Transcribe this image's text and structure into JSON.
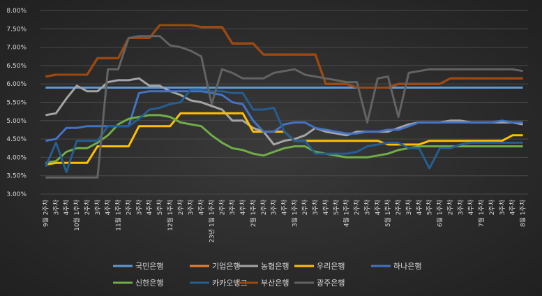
{
  "chart_data": {
    "type": "line",
    "ylim": [
      3.0,
      8.0
    ],
    "y_ticks": [
      "3.00%",
      "3.50%",
      "4.00%",
      "4.50%",
      "5.00%",
      "5.50%",
      "6.00%",
      "6.50%",
      "7.00%",
      "7.50%",
      "8.00%"
    ],
    "x_labels": [
      "9월 2주차",
      "3주차",
      "4주차",
      "10월 1주차",
      "2주차",
      "3주차",
      "4주차",
      "11월 1주차",
      "2주차",
      "3주차",
      "4주차",
      "5주차",
      "12월 1주차",
      "2주차",
      "3주차",
      "4주차",
      "23년 1월 1주차",
      "2주차",
      "3주차",
      "4주차",
      "2월 1주차",
      "2주차",
      "3주차",
      "4주차",
      "3월 1주차",
      "2주차",
      "3주차",
      "4주차",
      "5주차",
      "4월 1주차",
      "2주차",
      "3주차",
      "4주차",
      "5월 1주차",
      "2주차",
      "3주차",
      "4주차",
      "5주차",
      "6월 1주차",
      "2주차",
      "3주차",
      "4주차",
      "7월 1주차",
      "2주차",
      "3주차",
      "4주차",
      "8월 1주차"
    ],
    "legend_position": "bottom",
    "series": [
      {
        "name": "국민은행",
        "color": "#5b9bd5",
        "values": [
          5.9,
          5.9,
          5.9,
          5.9,
          5.9,
          5.9,
          5.9,
          5.9,
          5.9,
          5.9,
          5.9,
          5.9,
          5.9,
          5.9,
          5.9,
          5.9,
          5.9,
          5.9,
          5.9,
          5.9,
          5.9,
          5.9,
          5.9,
          5.9,
          5.9,
          5.9,
          5.9,
          5.9,
          5.9,
          5.9,
          5.9,
          5.9,
          5.9,
          5.9,
          5.9,
          5.9,
          5.9,
          5.9,
          5.9,
          5.9,
          5.9,
          5.9,
          5.9,
          5.9,
          5.9,
          5.9,
          5.9
        ]
      },
      {
        "name": "기업은행",
        "color": "#ed7d31",
        "values": [
          6.2,
          6.25,
          6.25,
          6.25,
          6.25,
          6.7,
          6.7,
          6.7,
          7.25,
          7.25,
          7.25,
          7.6,
          7.6,
          7.6,
          7.6,
          7.55,
          7.55,
          7.55,
          7.1,
          7.1,
          7.1,
          6.8,
          6.8,
          6.8,
          6.8,
          6.8,
          6.8,
          6.0,
          6.0,
          6.0,
          5.9,
          5.9,
          5.9,
          5.9,
          6.0,
          6.0,
          6.0,
          6.0,
          6.0,
          6.15,
          6.15,
          6.15,
          6.15,
          6.15,
          6.15,
          6.15,
          6.15
        ]
      },
      {
        "name": "농협은행",
        "color": "#a5a5a5",
        "values": [
          5.15,
          5.2,
          5.6,
          5.95,
          5.8,
          5.8,
          6.05,
          6.1,
          6.1,
          6.15,
          5.95,
          5.95,
          5.8,
          5.7,
          5.55,
          5.5,
          5.4,
          5.3,
          5.0,
          5.0,
          4.8,
          4.7,
          4.35,
          4.45,
          4.5,
          4.6,
          4.8,
          4.7,
          4.65,
          4.6,
          4.7,
          4.7,
          4.7,
          4.7,
          4.8,
          4.9,
          4.95,
          4.95,
          4.95,
          5.0,
          5.0,
          4.95,
          4.95,
          4.95,
          4.95,
          4.95,
          4.9
        ]
      },
      {
        "name": "우리은행",
        "color": "#ffc000",
        "values": [
          3.8,
          3.85,
          3.85,
          3.85,
          3.85,
          4.3,
          4.3,
          4.3,
          4.3,
          4.85,
          4.85,
          4.85,
          4.85,
          5.2,
          5.2,
          5.2,
          5.2,
          5.2,
          5.2,
          5.2,
          4.7,
          4.7,
          4.7,
          4.7,
          4.45,
          4.45,
          4.45,
          4.45,
          4.45,
          4.45,
          4.45,
          4.45,
          4.45,
          4.35,
          4.35,
          4.35,
          4.35,
          4.45,
          4.45,
          4.45,
          4.45,
          4.45,
          4.45,
          4.45,
          4.45,
          4.6,
          4.6
        ]
      },
      {
        "name": "하나은행",
        "color": "#4472c4",
        "values": [
          4.45,
          4.5,
          4.8,
          4.8,
          4.85,
          4.85,
          4.85,
          4.85,
          4.85,
          5.75,
          5.8,
          5.8,
          5.8,
          5.8,
          5.8,
          5.8,
          5.75,
          5.7,
          5.5,
          5.45,
          5.0,
          4.7,
          4.7,
          4.9,
          4.95,
          4.95,
          4.8,
          4.75,
          4.7,
          4.65,
          4.65,
          4.7,
          4.7,
          4.75,
          4.75,
          4.85,
          4.95,
          4.95,
          4.95,
          4.95,
          4.95,
          4.95,
          4.95,
          4.95,
          5.0,
          4.95,
          4.95
        ]
      },
      {
        "name": "신한은행",
        "color": "#70ad47",
        "values": [
          3.85,
          3.9,
          4.15,
          4.25,
          4.25,
          4.4,
          4.6,
          4.9,
          5.05,
          5.1,
          5.15,
          5.15,
          5.1,
          4.95,
          4.9,
          4.85,
          4.6,
          4.4,
          4.25,
          4.2,
          4.1,
          4.05,
          4.15,
          4.25,
          4.3,
          4.3,
          4.15,
          4.1,
          4.05,
          4.0,
          4.0,
          4.0,
          4.05,
          4.1,
          4.2,
          4.25,
          4.3,
          4.3,
          4.3,
          4.3,
          4.3,
          4.3,
          4.3,
          4.3,
          4.3,
          4.3,
          4.3
        ]
      },
      {
        "name": "카카오뱅크",
        "color": "#255e91",
        "values": [
          3.75,
          4.4,
          3.6,
          4.45,
          4.45,
          4.45,
          4.85,
          4.85,
          4.85,
          5.05,
          5.3,
          5.35,
          5.45,
          5.5,
          5.85,
          5.85,
          5.8,
          5.8,
          5.75,
          5.75,
          5.3,
          5.3,
          5.35,
          4.7,
          4.45,
          4.45,
          4.1,
          4.1,
          4.1,
          4.1,
          4.15,
          4.3,
          4.35,
          4.4,
          4.4,
          4.25,
          4.25,
          3.7,
          4.25,
          4.25,
          4.35,
          4.4,
          4.4,
          4.4,
          4.4,
          4.4,
          4.4
        ]
      },
      {
        "name": "부산은행",
        "color": "#9e480e",
        "values": [
          6.2,
          6.25,
          6.25,
          6.25,
          6.25,
          6.7,
          6.7,
          6.7,
          7.25,
          7.25,
          7.25,
          7.6,
          7.6,
          7.6,
          7.6,
          7.55,
          7.55,
          7.55,
          7.1,
          7.1,
          7.1,
          6.8,
          6.8,
          6.8,
          6.8,
          6.8,
          6.8,
          6.0,
          6.0,
          6.0,
          5.9,
          5.9,
          5.9,
          5.9,
          6.0,
          6.0,
          6.0,
          6.0,
          6.0,
          6.15,
          6.15,
          6.15,
          6.15,
          6.15,
          6.15,
          6.15,
          6.15
        ]
      },
      {
        "name": "광주은행",
        "color": "#636363",
        "values": [
          3.45,
          3.45,
          3.45,
          3.45,
          3.45,
          3.45,
          6.4,
          6.4,
          7.25,
          7.3,
          7.3,
          7.3,
          7.05,
          7.0,
          6.9,
          6.75,
          5.45,
          6.4,
          6.3,
          6.15,
          6.15,
          6.15,
          6.3,
          6.35,
          6.4,
          6.25,
          6.2,
          6.15,
          6.1,
          6.05,
          6.05,
          4.95,
          6.15,
          6.2,
          5.1,
          6.3,
          6.35,
          6.4,
          6.4,
          6.4,
          6.4,
          6.4,
          6.4,
          6.4,
          6.4,
          6.4,
          6.35
        ]
      }
    ]
  }
}
